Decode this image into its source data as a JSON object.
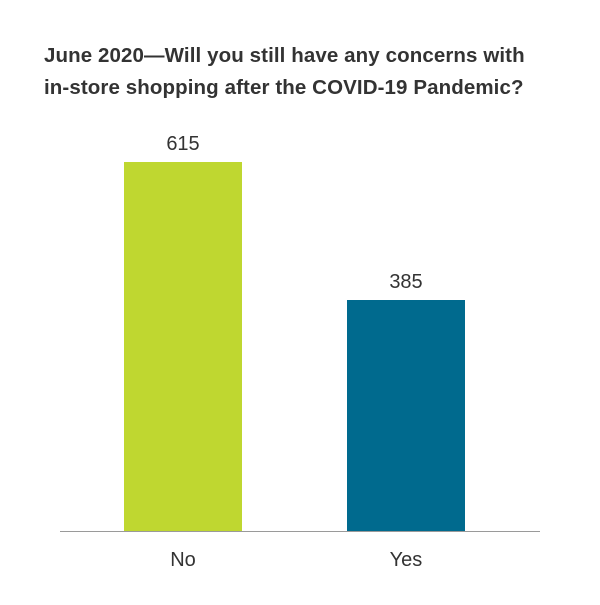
{
  "chart_data": {
    "type": "bar",
    "title_lines": [
      "June 2020—Will you still have any concerns with",
      "in-store shopping after the COVID-19 Pandemic?"
    ],
    "categories": [
      "No",
      "Yes"
    ],
    "values": [
      615,
      385
    ],
    "data_labels": [
      "615",
      "385"
    ],
    "colors": [
      "#bfd730",
      "#006a8e"
    ],
    "ylim": [
      0,
      700
    ],
    "grid": false,
    "legend": "none",
    "xlabel": "",
    "ylabel": ""
  }
}
